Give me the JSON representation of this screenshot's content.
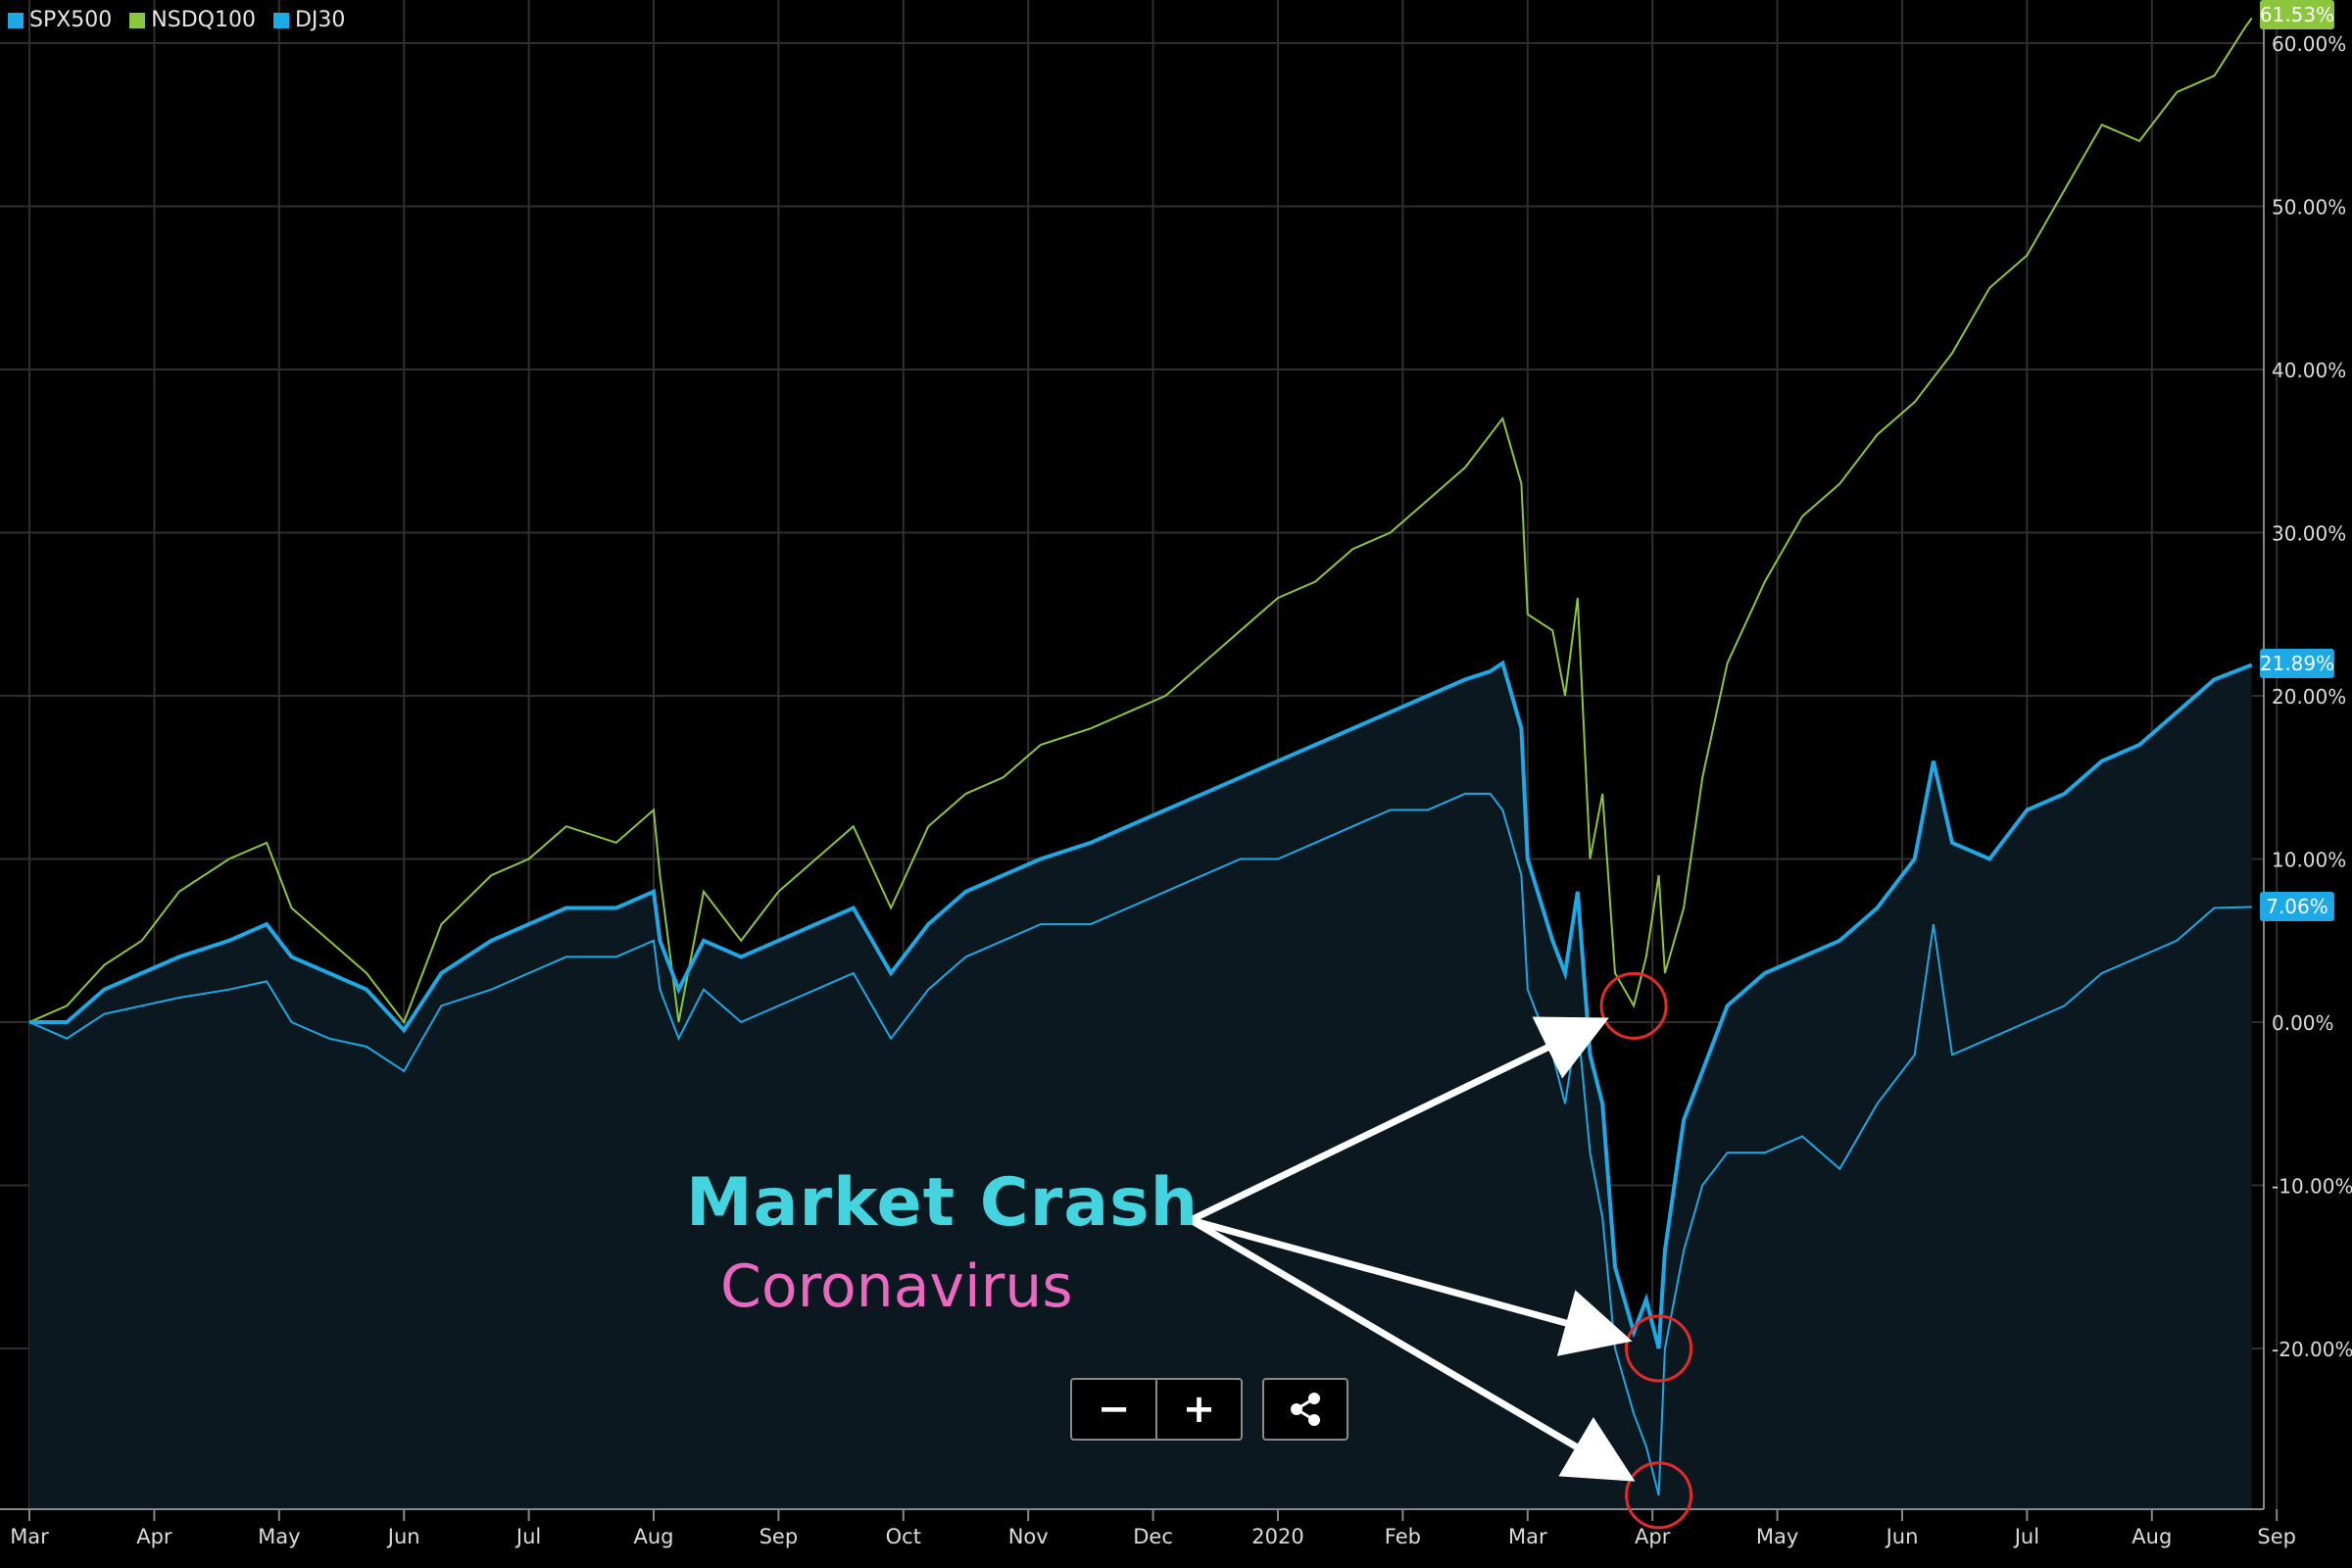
{
  "legend": {
    "items": [
      {
        "label": "SPX500",
        "color": "#1ca9e6"
      },
      {
        "label": "NSDQ100",
        "color": "#8cc63e"
      },
      {
        "label": "DJ30",
        "color": "#1ca9e6"
      }
    ]
  },
  "annotation": {
    "title": "Market Crash",
    "subtitle": "Coronavirus",
    "title_color": "#43d4e0",
    "subtitle_color": "#ea68c0"
  },
  "controls": {
    "zoom_out_icon": "minus-icon",
    "zoom_in_icon": "plus-icon",
    "share_icon": "share-icon"
  },
  "last_values": {
    "nsdq": "61.53%",
    "spx": "21.89%",
    "dj": "7.06%"
  },
  "chart_data": {
    "type": "line",
    "y_unit": "percent change",
    "ylim": [
      -29,
      62
    ],
    "yticks": [
      -20,
      -10,
      0,
      10,
      20,
      30,
      40,
      50,
      60
    ],
    "ytick_labels": [
      "-20.00%",
      "-10.00%",
      "0.00%",
      "10.00%",
      "20.00%",
      "30.00%",
      "40.00%",
      "50.00%",
      "60.00%"
    ],
    "x_labels": [
      "Mar",
      "Apr",
      "May",
      "Jun",
      "Jul",
      "Aug",
      "Sep",
      "Oct",
      "Nov",
      "Dec",
      "2020",
      "Feb",
      "Mar",
      "Apr",
      "May",
      "Jun",
      "Jul",
      "Aug",
      "Sep"
    ],
    "x_label_months": [
      0,
      1,
      2,
      3,
      4,
      5,
      6,
      7,
      8,
      9,
      10,
      11,
      12,
      13,
      14,
      15,
      16,
      17,
      18
    ],
    "grid": true,
    "legend_position": "top-left",
    "series": [
      {
        "name": "NSDQ100",
        "color": "#8cc63e",
        "points": [
          [
            0,
            0
          ],
          [
            0.3,
            1
          ],
          [
            0.6,
            3.5
          ],
          [
            0.9,
            5
          ],
          [
            1.2,
            8
          ],
          [
            1.6,
            10
          ],
          [
            1.9,
            11
          ],
          [
            2.1,
            7
          ],
          [
            2.4,
            5
          ],
          [
            2.7,
            3
          ],
          [
            3.0,
            0
          ],
          [
            3.3,
            6
          ],
          [
            3.7,
            9
          ],
          [
            4.0,
            10
          ],
          [
            4.3,
            12
          ],
          [
            4.7,
            11
          ],
          [
            5.0,
            13
          ],
          [
            5.05,
            9
          ],
          [
            5.2,
            0
          ],
          [
            5.4,
            8
          ],
          [
            5.7,
            5
          ],
          [
            6.0,
            8
          ],
          [
            6.3,
            10
          ],
          [
            6.6,
            12
          ],
          [
            6.9,
            7
          ],
          [
            7.2,
            12
          ],
          [
            7.5,
            14
          ],
          [
            7.8,
            15
          ],
          [
            8.1,
            17
          ],
          [
            8.5,
            18
          ],
          [
            8.8,
            19
          ],
          [
            9.1,
            20
          ],
          [
            9.4,
            22
          ],
          [
            9.7,
            24
          ],
          [
            10.0,
            26
          ],
          [
            10.3,
            27
          ],
          [
            10.6,
            29
          ],
          [
            10.9,
            30
          ],
          [
            11.2,
            32
          ],
          [
            11.5,
            34
          ],
          [
            11.7,
            36
          ],
          [
            11.8,
            37
          ],
          [
            11.95,
            33
          ],
          [
            12.0,
            25
          ],
          [
            12.2,
            24
          ],
          [
            12.3,
            20
          ],
          [
            12.4,
            26
          ],
          [
            12.5,
            10
          ],
          [
            12.6,
            14
          ],
          [
            12.7,
            3
          ],
          [
            12.85,
            1
          ],
          [
            12.95,
            4
          ],
          [
            13.05,
            9
          ],
          [
            13.1,
            3
          ],
          [
            13.25,
            7
          ],
          [
            13.4,
            15
          ],
          [
            13.6,
            22
          ],
          [
            13.9,
            27
          ],
          [
            14.2,
            31
          ],
          [
            14.5,
            33
          ],
          [
            14.8,
            36
          ],
          [
            15.1,
            38
          ],
          [
            15.4,
            41
          ],
          [
            15.7,
            45
          ],
          [
            16.0,
            47
          ],
          [
            16.3,
            51
          ],
          [
            16.6,
            55
          ],
          [
            16.9,
            54
          ],
          [
            17.2,
            57
          ],
          [
            17.5,
            58
          ],
          [
            17.75,
            61
          ],
          [
            17.8,
            61.53
          ]
        ]
      },
      {
        "name": "SPX500",
        "color": "#1ca9e6",
        "points": [
          [
            0,
            0
          ],
          [
            0.3,
            0
          ],
          [
            0.6,
            2
          ],
          [
            0.9,
            3
          ],
          [
            1.2,
            4
          ],
          [
            1.6,
            5
          ],
          [
            1.9,
            6
          ],
          [
            2.1,
            4
          ],
          [
            2.4,
            3
          ],
          [
            2.7,
            2
          ],
          [
            3.0,
            -0.5
          ],
          [
            3.3,
            3
          ],
          [
            3.7,
            5
          ],
          [
            4.0,
            6
          ],
          [
            4.3,
            7
          ],
          [
            4.7,
            7
          ],
          [
            5.0,
            8
          ],
          [
            5.05,
            5
          ],
          [
            5.2,
            2
          ],
          [
            5.4,
            5
          ],
          [
            5.7,
            4
          ],
          [
            6.0,
            5
          ],
          [
            6.3,
            6
          ],
          [
            6.6,
            7
          ],
          [
            6.9,
            3
          ],
          [
            7.2,
            6
          ],
          [
            7.5,
            8
          ],
          [
            7.8,
            9
          ],
          [
            8.1,
            10
          ],
          [
            8.5,
            11
          ],
          [
            8.8,
            12
          ],
          [
            9.1,
            13
          ],
          [
            9.4,
            14
          ],
          [
            9.7,
            15
          ],
          [
            10.0,
            16
          ],
          [
            10.3,
            17
          ],
          [
            10.6,
            18
          ],
          [
            10.9,
            19
          ],
          [
            11.2,
            20
          ],
          [
            11.5,
            21
          ],
          [
            11.7,
            21.5
          ],
          [
            11.8,
            22
          ],
          [
            11.95,
            18
          ],
          [
            12.0,
            10
          ],
          [
            12.2,
            5
          ],
          [
            12.3,
            3
          ],
          [
            12.4,
            8
          ],
          [
            12.5,
            -2
          ],
          [
            12.6,
            -5
          ],
          [
            12.7,
            -15
          ],
          [
            12.85,
            -19
          ],
          [
            12.95,
            -17
          ],
          [
            13.05,
            -20
          ],
          [
            13.1,
            -14
          ],
          [
            13.25,
            -6
          ],
          [
            13.4,
            -3
          ],
          [
            13.6,
            1
          ],
          [
            13.9,
            3
          ],
          [
            14.2,
            4
          ],
          [
            14.5,
            5
          ],
          [
            14.8,
            7
          ],
          [
            15.1,
            10
          ],
          [
            15.25,
            16
          ],
          [
            15.4,
            11
          ],
          [
            15.7,
            10
          ],
          [
            16.0,
            13
          ],
          [
            16.3,
            14
          ],
          [
            16.6,
            16
          ],
          [
            16.9,
            17
          ],
          [
            17.2,
            19
          ],
          [
            17.5,
            21
          ],
          [
            17.8,
            21.89
          ]
        ]
      },
      {
        "name": "DJ30",
        "color": "#1ca9e6",
        "points": [
          [
            0,
            0
          ],
          [
            0.3,
            -1
          ],
          [
            0.6,
            0.5
          ],
          [
            0.9,
            1
          ],
          [
            1.2,
            1.5
          ],
          [
            1.6,
            2
          ],
          [
            1.9,
            2.5
          ],
          [
            2.1,
            0
          ],
          [
            2.4,
            -1
          ],
          [
            2.7,
            -1.5
          ],
          [
            3.0,
            -3
          ],
          [
            3.3,
            1
          ],
          [
            3.7,
            2
          ],
          [
            4.0,
            3
          ],
          [
            4.3,
            4
          ],
          [
            4.7,
            4
          ],
          [
            5.0,
            5
          ],
          [
            5.05,
            2
          ],
          [
            5.2,
            -1
          ],
          [
            5.4,
            2
          ],
          [
            5.7,
            0
          ],
          [
            6.0,
            1
          ],
          [
            6.3,
            2
          ],
          [
            6.6,
            3
          ],
          [
            6.9,
            -1
          ],
          [
            7.2,
            2
          ],
          [
            7.5,
            4
          ],
          [
            7.8,
            5
          ],
          [
            8.1,
            6
          ],
          [
            8.5,
            6
          ],
          [
            8.8,
            7
          ],
          [
            9.1,
            8
          ],
          [
            9.4,
            9
          ],
          [
            9.7,
            10
          ],
          [
            10.0,
            10
          ],
          [
            10.3,
            11
          ],
          [
            10.6,
            12
          ],
          [
            10.9,
            13
          ],
          [
            11.2,
            13
          ],
          [
            11.5,
            14
          ],
          [
            11.7,
            14
          ],
          [
            11.8,
            13
          ],
          [
            11.95,
            9
          ],
          [
            12.0,
            2
          ],
          [
            12.2,
            -2
          ],
          [
            12.3,
            -5
          ],
          [
            12.4,
            0
          ],
          [
            12.5,
            -8
          ],
          [
            12.6,
            -12
          ],
          [
            12.7,
            -20
          ],
          [
            12.85,
            -24
          ],
          [
            12.95,
            -26
          ],
          [
            13.05,
            -29
          ],
          [
            13.1,
            -20
          ],
          [
            13.25,
            -14
          ],
          [
            13.4,
            -10
          ],
          [
            13.6,
            -8
          ],
          [
            13.9,
            -8
          ],
          [
            14.2,
            -7
          ],
          [
            14.5,
            -9
          ],
          [
            14.8,
            -5
          ],
          [
            15.1,
            -2
          ],
          [
            15.25,
            6
          ],
          [
            15.4,
            -2
          ],
          [
            15.7,
            -1
          ],
          [
            16.0,
            0
          ],
          [
            16.3,
            1
          ],
          [
            16.6,
            3
          ],
          [
            16.9,
            4
          ],
          [
            17.2,
            5
          ],
          [
            17.5,
            7
          ],
          [
            17.8,
            7.06
          ]
        ]
      }
    ]
  }
}
